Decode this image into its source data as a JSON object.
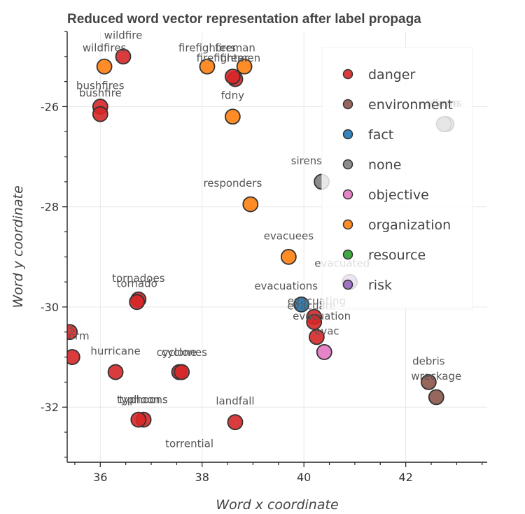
{
  "chart_data": {
    "type": "scatter",
    "title": "Reduced word vector representation after label propaga",
    "xlabel": "Word x coordinate",
    "ylabel": "Word y coordinate",
    "xlim": [
      35.35,
      43.6
    ],
    "ylim": [
      -33.1,
      -24.5
    ],
    "xticks": [
      36,
      38,
      40,
      42
    ],
    "xtick_labels": [
      "36",
      "38",
      "40",
      "42"
    ],
    "yticks": [
      -26,
      -28,
      -30,
      -32
    ],
    "ytick_labels": [
      "-26",
      "-28",
      "-30",
      "-32"
    ],
    "grid": true,
    "legend_placement": "top-right",
    "categories": [
      {
        "name": "danger",
        "color": "#d62728"
      },
      {
        "name": "environment",
        "color": "#8c564b"
      },
      {
        "name": "fact",
        "color": "#1f77b4"
      },
      {
        "name": "none",
        "color": "#7f7f7f"
      },
      {
        "name": "objective",
        "color": "#e377c2"
      },
      {
        "name": "organization",
        "color": "#ff7f0e"
      },
      {
        "name": "resource",
        "color": "#2ca02c"
      },
      {
        "name": "risk",
        "color": "#9467bd"
      }
    ],
    "points": [
      {
        "word": "wildfire",
        "x": 36.45,
        "y": -25.0,
        "category": "danger",
        "lx": 36.45,
        "ly": -24.65
      },
      {
        "word": "wildfires",
        "x": 36.08,
        "y": -25.2,
        "category": "organization",
        "lx": 36.08,
        "ly": -24.9
      },
      {
        "word": "firefighters",
        "x": 38.1,
        "y": -25.2,
        "category": "organization",
        "lx": 38.1,
        "ly": -24.9
      },
      {
        "word": "fireman",
        "x": 38.83,
        "y": -25.2,
        "category": "organization",
        "lx": 38.65,
        "ly": -24.9
      },
      {
        "word": "firefighter",
        "x": 38.65,
        "y": -25.45,
        "category": "danger",
        "lx": 38.4,
        "ly": -25.1
      },
      {
        "word": "firemen",
        "x": 38.6,
        "y": -25.4,
        "category": "danger",
        "lx": 38.75,
        "ly": -25.1
      },
      {
        "word": "bushfires",
        "x": 36.0,
        "y": -26.0,
        "category": "danger",
        "lx": 36.0,
        "ly": -25.65
      },
      {
        "word": "bushfire",
        "x": 36.0,
        "y": -26.15,
        "category": "danger",
        "lx": 36.0,
        "ly": -25.8
      },
      {
        "word": "fdny",
        "x": 38.6,
        "y": -26.2,
        "category": "organization",
        "lx": 38.6,
        "ly": -25.85
      },
      {
        "word": "sirens",
        "x": 40.35,
        "y": -27.5,
        "category": "none",
        "lx": 40.05,
        "ly": -27.15
      },
      {
        "word": "alarms",
        "x": 42.8,
        "y": -26.35,
        "category": "none",
        "lx": 42.75,
        "ly": -26.0
      },
      {
        "word": "alarm",
        "x": 42.75,
        "y": -26.35,
        "category": "none",
        "lx": 42.75,
        "ly": -26.0
      },
      {
        "word": "responders",
        "x": 38.95,
        "y": -27.95,
        "category": "organization",
        "lx": 38.6,
        "ly": -27.6
      },
      {
        "word": "evacuees",
        "x": 39.7,
        "y": -29.0,
        "category": "organization",
        "lx": 39.7,
        "ly": -28.65
      },
      {
        "word": "evacuated",
        "x": 40.9,
        "y": -29.5,
        "category": "risk",
        "lx": 40.75,
        "ly": -29.2
      },
      {
        "word": "tornadoes",
        "x": 36.75,
        "y": -29.85,
        "category": "danger",
        "lx": 36.75,
        "ly": -29.5
      },
      {
        "word": "tornado",
        "x": 36.72,
        "y": -29.9,
        "category": "danger",
        "lx": 36.72,
        "ly": -29.6
      },
      {
        "word": "evacuations",
        "x": 39.95,
        "y": -29.95,
        "category": "fact",
        "lx": 39.65,
        "ly": -29.65
      },
      {
        "word": "evacuating",
        "x": 40.2,
        "y": -30.2,
        "category": "danger",
        "lx": 40.25,
        "ly": -29.95
      },
      {
        "word": "evacuate",
        "x": 40.2,
        "y": -30.3,
        "category": "danger",
        "lx": 40.15,
        "ly": -30.05
      },
      {
        "word": "evacuation",
        "x": 40.25,
        "y": -30.6,
        "category": "danger",
        "lx": 40.35,
        "ly": -30.25
      },
      {
        "word": "evac",
        "x": 40.4,
        "y": -30.9,
        "category": "objective",
        "lx": 40.45,
        "ly": -30.55
      },
      {
        "word": "s",
        "x": 35.4,
        "y": -30.5,
        "category": "danger",
        "lx": 35.45,
        "ly": -30.5
      },
      {
        "word": "orm",
        "x": 35.45,
        "y": -31.0,
        "category": "danger",
        "lx": 35.58,
        "ly": -30.65
      },
      {
        "word": "hurricane",
        "x": 36.3,
        "y": -31.3,
        "category": "danger",
        "lx": 36.3,
        "ly": -30.95
      },
      {
        "word": "cyclones",
        "x": 37.55,
        "y": -31.3,
        "category": "danger",
        "lx": 37.65,
        "ly": -30.98
      },
      {
        "word": "cyclone",
        "x": 37.6,
        "y": -31.3,
        "category": "danger",
        "lx": 37.5,
        "ly": -30.98
      },
      {
        "word": "debris",
        "x": 42.45,
        "y": -31.5,
        "category": "environment",
        "lx": 42.45,
        "ly": -31.15
      },
      {
        "word": "wreckage",
        "x": 42.6,
        "y": -31.8,
        "category": "environment",
        "lx": 42.6,
        "ly": -31.45
      },
      {
        "word": "typhoons",
        "x": 36.85,
        "y": -32.25,
        "category": "danger",
        "lx": 36.85,
        "ly": -31.92
      },
      {
        "word": "typhoon",
        "x": 36.75,
        "y": -32.25,
        "category": "danger",
        "lx": 36.75,
        "ly": -31.92
      },
      {
        "word": "landfall",
        "x": 38.65,
        "y": -32.3,
        "category": "danger",
        "lx": 38.65,
        "ly": -31.95
      },
      {
        "word": "torrential",
        "x": 37.75,
        "y": -33.3,
        "category": "danger",
        "lx": 37.75,
        "ly": -32.8
      }
    ]
  }
}
